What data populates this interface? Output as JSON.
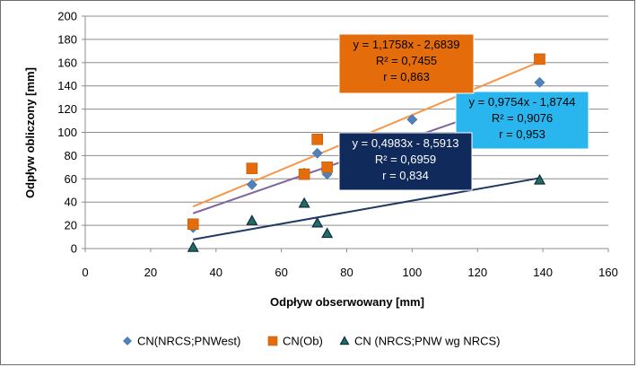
{
  "chart_data": {
    "type": "scatter",
    "title": "",
    "xlabel": "Odpływ obserwowany [mm]",
    "ylabel": "Odpływ obliczony [mm]",
    "xlim": [
      0,
      160
    ],
    "ylim": [
      0,
      200
    ],
    "xticks": [
      0,
      20,
      40,
      60,
      80,
      100,
      120,
      140,
      160
    ],
    "yticks": [
      0,
      20,
      40,
      60,
      80,
      100,
      120,
      140,
      160,
      180,
      200
    ],
    "grid": "horizontal",
    "legend_position": "bottom",
    "series": [
      {
        "name": "CN(NRCS;PNWest)",
        "marker": "diamond",
        "color": "#4f81bd",
        "line_color": "#8064a2",
        "x": [
          33,
          51,
          67,
          71,
          74,
          100,
          139
        ],
        "y": [
          18,
          55,
          65,
          82,
          64,
          111,
          143
        ],
        "trendline": {
          "slope": 0.9754,
          "intercept": -1.8744,
          "x_range": [
            33,
            139
          ],
          "equation": "y = 0,9754x - 1,8744",
          "r2": "R² = 0,9076",
          "r": "r = 0,953",
          "box_fill": "#29b6ee",
          "text_color": "#000000"
        }
      },
      {
        "name": "CN(Ob)",
        "marker": "square",
        "color": "#e46c0a",
        "line_color": "#f79646",
        "x": [
          33,
          51,
          67,
          71,
          74,
          139
        ],
        "y": [
          21,
          69,
          64,
          94,
          70,
          163
        ],
        "trendline": {
          "slope": 1.1758,
          "intercept": -2.6839,
          "x_range": [
            33,
            139
          ],
          "equation": "y = 1,1758x - 2,6839",
          "r2": "R² = 0,7455",
          "r": "r = 0,863",
          "box_fill": "#e46c0a",
          "text_color": "#000000"
        }
      },
      {
        "name": "CN (NRCS;PNW wg NRCS)",
        "marker": "triangle",
        "color": "#0f2a4a",
        "marker_fill": "#1f6f5a",
        "line_color": "#1f3864",
        "x": [
          33,
          51,
          67,
          71,
          74,
          139
        ],
        "y": [
          1,
          24,
          39,
          22,
          13,
          59
        ],
        "trendline": {
          "slope": 0.4983,
          "intercept": -8.5913,
          "x_range": [
            33,
            139
          ],
          "equation": "y = 0,4983x - 8,5913",
          "r2": "R² = 0,6959",
          "r": "r = 0,834",
          "box_fill": "#102a5c",
          "text_color": "#ffffff"
        }
      }
    ]
  }
}
